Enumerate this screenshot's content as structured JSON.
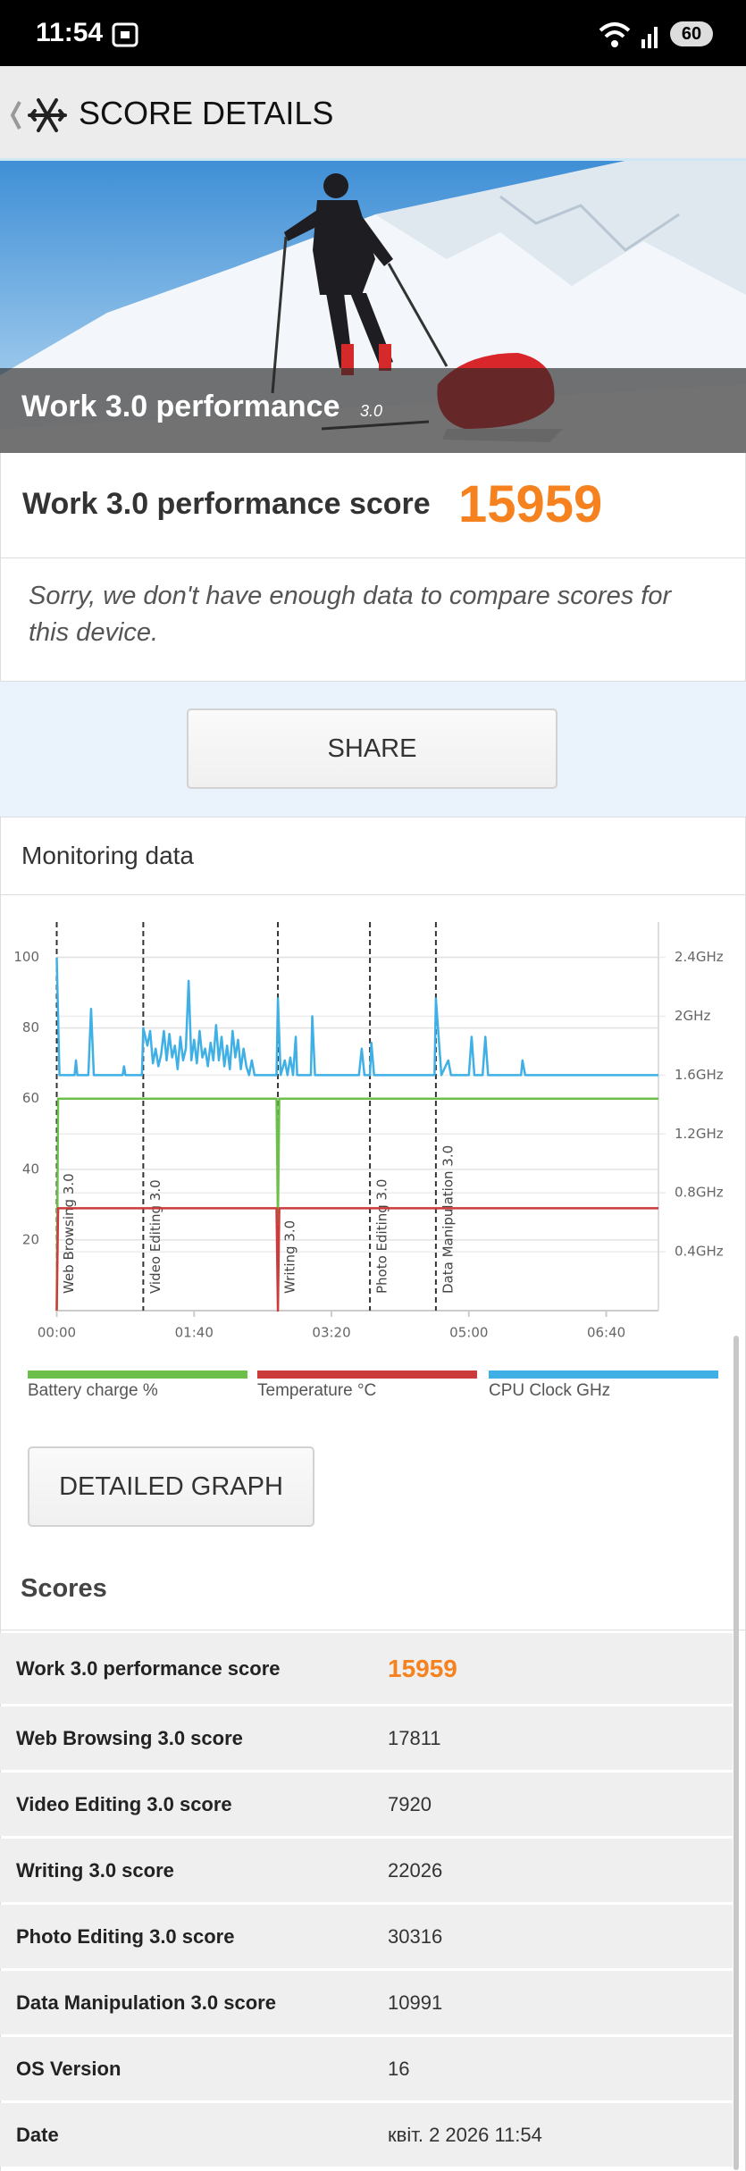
{
  "status_bar": {
    "time": "11:54",
    "battery": "60"
  },
  "app_bar": {
    "title": "SCORE DETAILS"
  },
  "hero": {
    "title": "Work 3.0 performance",
    "version": "3.0"
  },
  "score": {
    "label": "Work 3.0 performance score",
    "value": "15959"
  },
  "comparison_note": "Sorry, we don't have enough data to compare scores for this device.",
  "share_button": "SHARE",
  "monitoring": {
    "title": "Monitoring data",
    "chart": {
      "type": "line",
      "xlim": [
        0,
        438
      ],
      "xticks": [
        {
          "value": 0,
          "label": "00:00"
        },
        {
          "value": 100,
          "label": "01:40"
        },
        {
          "value": 200,
          "label": "03:20"
        },
        {
          "value": 300,
          "label": "05:00"
        },
        {
          "value": 400,
          "label": "06:40"
        }
      ],
      "ylim": [
        0,
        110
      ],
      "yticks": [
        20,
        40,
        60,
        80,
        100
      ],
      "y2lim": [
        0,
        2.64
      ],
      "y2ticks": [
        {
          "value": 0.4,
          "label": "0.4GHz"
        },
        {
          "value": 0.8,
          "label": "0.8GHz"
        },
        {
          "value": 1.2,
          "label": "1.2GHz"
        },
        {
          "value": 1.6,
          "label": "1.6GHz"
        },
        {
          "value": 2,
          "label": "2GHz"
        },
        {
          "value": 2.4,
          "label": "2.4GHz"
        }
      ],
      "grid": true,
      "events": [
        {
          "x": 0,
          "label": "Web Browsing 3.0"
        },
        {
          "x": 63,
          "label": "Video Editing 3.0"
        },
        {
          "x": 161,
          "label": "Writing 3.0"
        },
        {
          "x": 228,
          "label": "Photo Editing 3.0"
        },
        {
          "x": 276,
          "label": "Data Manipulation 3.0"
        }
      ],
      "series": [
        {
          "name": "Battery charge %",
          "color": "#6cc04a",
          "x": [
            0,
            1,
            160,
            161,
            162,
            438
          ],
          "values": [
            0,
            60,
            60,
            25,
            60,
            60
          ]
        },
        {
          "name": "Temperature °C",
          "color": "#cc3b3b",
          "x": [
            0,
            1,
            160,
            161,
            162,
            438
          ],
          "values": [
            0,
            29,
            29,
            0,
            29,
            29
          ]
        },
        {
          "name": "CPU Clock GHz",
          "color": "#3fb0e6",
          "axis": "y2",
          "x": [
            0,
            2,
            13,
            14,
            15,
            23,
            25,
            27,
            48,
            49,
            50,
            62,
            63,
            66,
            68,
            70,
            72,
            74,
            76,
            78,
            80,
            82,
            84,
            86,
            88,
            90,
            92,
            94,
            96,
            98,
            100,
            102,
            104,
            106,
            108,
            110,
            112,
            114,
            116,
            118,
            120,
            122,
            124,
            126,
            128,
            130,
            132,
            134,
            136,
            138,
            140,
            142,
            144,
            160,
            161,
            163,
            166,
            168,
            170,
            172,
            174,
            175,
            185,
            186,
            188,
            220,
            222,
            224,
            228,
            229,
            231,
            275,
            276,
            278,
            280,
            285,
            287,
            300,
            302,
            304,
            310,
            312,
            314,
            338,
            339,
            341,
            438
          ],
          "values": [
            2.4,
            1.6,
            1.6,
            1.7,
            1.6,
            1.6,
            2.05,
            1.6,
            1.6,
            1.66,
            1.6,
            1.6,
            1.92,
            1.8,
            1.9,
            1.68,
            1.78,
            1.66,
            1.74,
            1.9,
            1.7,
            1.88,
            1.72,
            1.8,
            1.64,
            1.86,
            1.7,
            1.78,
            2.24,
            1.7,
            1.84,
            1.68,
            1.9,
            1.72,
            1.78,
            1.66,
            1.82,
            1.7,
            1.94,
            1.7,
            1.86,
            1.66,
            1.8,
            1.64,
            1.9,
            1.72,
            1.84,
            1.64,
            1.78,
            1.66,
            1.6,
            1.7,
            1.6,
            1.6,
            2.12,
            1.6,
            1.7,
            1.6,
            1.72,
            1.6,
            1.86,
            1.6,
            1.6,
            2.0,
            1.6,
            1.6,
            1.78,
            1.6,
            1.6,
            1.82,
            1.6,
            1.6,
            2.12,
            1.86,
            1.6,
            1.7,
            1.6,
            1.6,
            1.86,
            1.6,
            1.6,
            1.86,
            1.6,
            1.6,
            1.7,
            1.6,
            1.6
          ]
        }
      ]
    },
    "detailed_graph_button": "DETAILED GRAPH"
  },
  "scores": {
    "title": "Scores",
    "rows": [
      [
        "Work 3.0 performance score",
        "15959"
      ],
      [
        "Web Browsing 3.0 score",
        "17811"
      ],
      [
        "Video Editing 3.0 score",
        "7920"
      ],
      [
        "Writing 3.0 score",
        "22026"
      ],
      [
        "Photo Editing 3.0 score",
        "30316"
      ],
      [
        "Data Manipulation 3.0 score",
        "10991"
      ],
      [
        "OS Version",
        "16"
      ],
      [
        "Date",
        "квіт. 2 2026 11:54"
      ]
    ]
  }
}
